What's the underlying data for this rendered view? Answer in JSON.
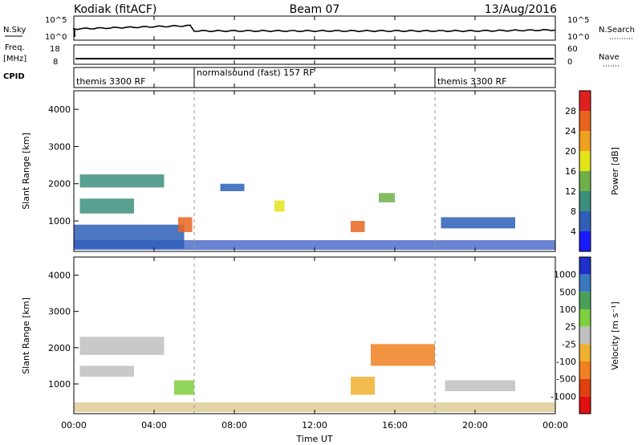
{
  "header": {
    "left": "Kodiak (fitACF)",
    "center": "Beam 07",
    "right": "13/Aug/2016"
  },
  "sky_panel": {
    "left_label": "N.Sky",
    "left_ticks": [
      "10^5",
      "10^0"
    ],
    "right_ticks": [
      "10^5",
      "10^0"
    ],
    "right_label": "N.Search"
  },
  "freq_panel": {
    "left_label_line1": "Freq.",
    "left_label_line2": "[MHz]",
    "left_ticks": [
      "18",
      "8"
    ],
    "right_ticks": [
      "60",
      "0"
    ],
    "right_label": "Nave"
  },
  "cpid_panel": {
    "label": "CPID",
    "segments": [
      {
        "text": "themis 3300 RF",
        "start_hour": 0
      },
      {
        "text": "normalsound (fast) 157 RF",
        "start_hour": 6
      },
      {
        "text": "themis 3300 RF",
        "start_hour": 18
      }
    ]
  },
  "colors": {
    "power_scale": [
      "#1a1aff",
      "#2d5fb8",
      "#3c8f7c",
      "#6fb04a",
      "#e3e31a",
      "#f0a020",
      "#e8641e",
      "#e02020"
    ],
    "velocity_scale": [
      "#2030c8",
      "#3a78c0",
      "#4aa05a",
      "#7fcf40",
      "#c0c0c0",
      "#f0b030",
      "#f08020",
      "#e04010",
      "#e01010"
    ]
  },
  "chart_data": [
    {
      "type": "heatmap",
      "name": "power",
      "ylabel": "Slant Range [km]",
      "ylim": [
        180,
        4500
      ],
      "yticks": [
        "1000",
        "2000",
        "3000",
        "4000"
      ],
      "xlim": [
        0,
        24
      ],
      "colorbar_label": "Power [dB]",
      "colorbar_ticks": [
        "4",
        "8",
        "12",
        "16",
        "20",
        "24",
        "28"
      ],
      "clim": [
        0,
        32
      ],
      "patches": [
        {
          "t": [
            0.3,
            4.5
          ],
          "r": [
            1900,
            2250
          ],
          "val": 8
        },
        {
          "t": [
            0.3,
            3.0
          ],
          "r": [
            1200,
            1600
          ],
          "val": 10
        },
        {
          "t": [
            0.0,
            5.5
          ],
          "r": [
            250,
            900
          ],
          "val": 6
        },
        {
          "t": [
            5.2,
            5.9
          ],
          "r": [
            700,
            1100
          ],
          "val": 24
        },
        {
          "t": [
            7.3,
            8.5
          ],
          "r": [
            1800,
            2000
          ],
          "val": 6
        },
        {
          "t": [
            10.0,
            10.5
          ],
          "r": [
            1250,
            1550
          ],
          "val": 16
        },
        {
          "t": [
            13.8,
            14.5
          ],
          "r": [
            700,
            1000
          ],
          "val": 26
        },
        {
          "t": [
            15.2,
            16.0
          ],
          "r": [
            1500,
            1750
          ],
          "val": 15
        },
        {
          "t": [
            18.3,
            22.0
          ],
          "r": [
            800,
            1100
          ],
          "val": 6
        }
      ]
    },
    {
      "type": "heatmap",
      "name": "velocity",
      "ylabel": "Slant Range [km]",
      "ylim": [
        180,
        4500
      ],
      "yticks": [
        "1000",
        "2000",
        "3000",
        "4000"
      ],
      "xlim": [
        0,
        24
      ],
      "xticks": [
        "00:00",
        "04:00",
        "08:00",
        "12:00",
        "16:00",
        "20:00",
        "00:00"
      ],
      "xlabel": "Time UT",
      "colorbar_label": "Velocity [m s⁻¹]",
      "colorbar_ticks": [
        "1000",
        "500",
        "100",
        "25",
        "-25",
        "-100",
        "-500",
        "-1000"
      ],
      "patches": [
        {
          "t": [
            0.3,
            4.5
          ],
          "r": [
            1800,
            2300
          ],
          "val": 0
        },
        {
          "t": [
            0.3,
            3.0
          ],
          "r": [
            1200,
            1500
          ],
          "val": 0
        },
        {
          "t": [
            5.0,
            6.0
          ],
          "r": [
            700,
            1100
          ],
          "val": 80
        },
        {
          "t": [
            13.8,
            15.0
          ],
          "r": [
            700,
            1200
          ],
          "val": -60
        },
        {
          "t": [
            14.8,
            18.0
          ],
          "r": [
            1500,
            2100
          ],
          "val": -300
        },
        {
          "t": [
            18.5,
            22.0
          ],
          "r": [
            800,
            1100
          ],
          "val": 0
        }
      ]
    }
  ]
}
